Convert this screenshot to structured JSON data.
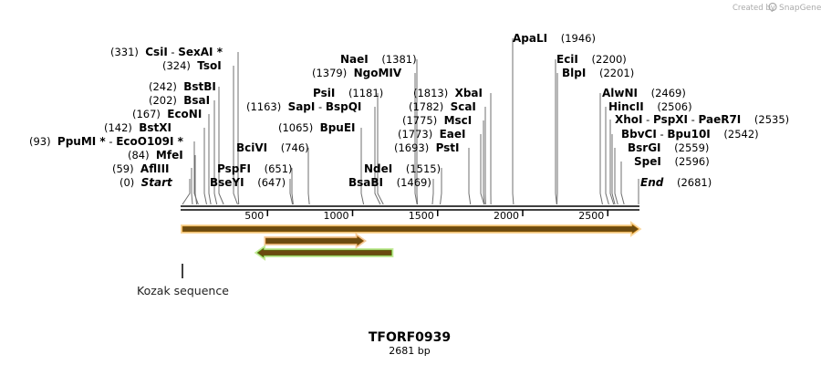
{
  "header": {
    "credit_prefix": "Created by",
    "credit_brand": "SnapGene"
  },
  "map": {
    "title": "TFORF0939",
    "length_label": "2681 bp",
    "total_bp": 2681,
    "ticks": [
      500,
      1000,
      1500,
      2000,
      2500
    ],
    "sites": [
      {
        "id": "start",
        "parts": [
          {
            "name": "Start",
            "italic": true
          }
        ],
        "pos": "(0)",
        "bp": 0
      },
      {
        "id": "bseyi",
        "parts": [
          {
            "name": "BseYI"
          }
        ],
        "pos": "(647)",
        "bp": 647
      },
      {
        "id": "afliii",
        "parts": [
          {
            "name": "AflIII"
          }
        ],
        "pos": "(59)",
        "bp": 59
      },
      {
        "id": "pspfi",
        "parts": [
          {
            "name": "PspFI"
          }
        ],
        "pos": "(651)",
        "bp": 651
      },
      {
        "id": "mfei",
        "parts": [
          {
            "name": "MfeI"
          }
        ],
        "pos": "(84)",
        "bp": 84
      },
      {
        "id": "ppumi",
        "parts": [
          {
            "name": "PpuMI *"
          },
          {
            "name": "EcoO109I *"
          }
        ],
        "pos": "(93)",
        "bp": 93
      },
      {
        "id": "bcivi",
        "parts": [
          {
            "name": "BciVI"
          }
        ],
        "pos": "(746)",
        "bp": 746
      },
      {
        "id": "bstxi",
        "parts": [
          {
            "name": "BstXI"
          }
        ],
        "pos": "(142)",
        "bp": 142
      },
      {
        "id": "econi",
        "parts": [
          {
            "name": "EcoNI"
          }
        ],
        "pos": "(167)",
        "bp": 167
      },
      {
        "id": "bsai",
        "parts": [
          {
            "name": "BsaI"
          }
        ],
        "pos": "(202)",
        "bp": 202
      },
      {
        "id": "bstbi",
        "parts": [
          {
            "name": "BstBI"
          }
        ],
        "pos": "(242)",
        "bp": 242
      },
      {
        "id": "tsoi",
        "parts": [
          {
            "name": "TsoI"
          }
        ],
        "pos": "(324)",
        "bp": 324
      },
      {
        "id": "csii",
        "parts": [
          {
            "name": "CsiI"
          },
          {
            "name": "SexAI *"
          }
        ],
        "pos": "(331)",
        "bp": 331
      },
      {
        "id": "bpuei",
        "parts": [
          {
            "name": "BpuEI"
          }
        ],
        "pos": "(1065)",
        "bp": 1065
      },
      {
        "id": "sapi",
        "parts": [
          {
            "name": "SapI"
          },
          {
            "name": "BspQI"
          }
        ],
        "pos": "(1163)",
        "bp": 1163
      },
      {
        "id": "psii",
        "parts": [
          {
            "name": "PsiI"
          }
        ],
        "pos": "(1181)",
        "bp": 1181
      },
      {
        "id": "ngomiv",
        "parts": [
          {
            "name": "NgoMIV"
          }
        ],
        "pos": "(1379)",
        "bp": 1379
      },
      {
        "id": "naei",
        "parts": [
          {
            "name": "NaeI"
          }
        ],
        "pos": "(1381)",
        "bp": 1381
      },
      {
        "id": "bsabi",
        "parts": [
          {
            "name": "BsaBI"
          }
        ],
        "pos": "(1469)",
        "bp": 1469
      },
      {
        "id": "ndei",
        "parts": [
          {
            "name": "NdeI"
          }
        ],
        "pos": "(1515)",
        "bp": 1515
      },
      {
        "id": "psti",
        "parts": [
          {
            "name": "PstI"
          }
        ],
        "pos": "(1693)",
        "bp": 1693
      },
      {
        "id": "eaei",
        "parts": [
          {
            "name": "EaeI"
          }
        ],
        "pos": "(1773)",
        "bp": 1773
      },
      {
        "id": "msci",
        "parts": [
          {
            "name": "MscI"
          }
        ],
        "pos": "(1775)",
        "bp": 1775
      },
      {
        "id": "scai",
        "parts": [
          {
            "name": "ScaI"
          }
        ],
        "pos": "(1782)",
        "bp": 1782
      },
      {
        "id": "xbai",
        "parts": [
          {
            "name": "XbaI"
          }
        ],
        "pos": "(1813)",
        "bp": 1813
      },
      {
        "id": "apali",
        "parts": [
          {
            "name": "ApaLI"
          }
        ],
        "pos": "(1946)",
        "bp": 1946
      },
      {
        "id": "ecii",
        "parts": [
          {
            "name": "EciI"
          }
        ],
        "pos": "(2200)",
        "bp": 2200
      },
      {
        "id": "blpi",
        "parts": [
          {
            "name": "BlpI"
          }
        ],
        "pos": "(2201)",
        "bp": 2201
      },
      {
        "id": "alwni",
        "parts": [
          {
            "name": "AlwNI"
          }
        ],
        "pos": "(2469)",
        "bp": 2469
      },
      {
        "id": "hincii",
        "parts": [
          {
            "name": "HincII"
          }
        ],
        "pos": "(2506)",
        "bp": 2506
      },
      {
        "id": "xhoi",
        "parts": [
          {
            "name": "XhoI"
          },
          {
            "name": "PspXI"
          },
          {
            "name": "PaeR7I"
          }
        ],
        "pos": "(2535)",
        "bp": 2535
      },
      {
        "id": "bbvci",
        "parts": [
          {
            "name": "BbvCI"
          },
          {
            "name": "Bpu10I"
          }
        ],
        "pos": "(2542)",
        "bp": 2542
      },
      {
        "id": "bsrgi",
        "parts": [
          {
            "name": "BsrGI"
          }
        ],
        "pos": "(2559)",
        "bp": 2559
      },
      {
        "id": "spei",
        "parts": [
          {
            "name": "SpeI"
          }
        ],
        "pos": "(2596)",
        "bp": 2596
      },
      {
        "id": "end",
        "parts": [
          {
            "name": "End",
            "italic": true
          }
        ],
        "pos": "(2681)",
        "bp": 2681
      }
    ],
    "features": [
      {
        "id": "orf-full",
        "direction": "forward",
        "start_bp": 0,
        "end_bp": 2681,
        "fill": "#f5a623",
        "stroke": "#c47a00"
      },
      {
        "id": "orf-inner",
        "direction": "forward",
        "start_bp": 490,
        "end_bp": 1065,
        "fill": "#e58a1f",
        "stroke": "#a45a00"
      },
      {
        "id": "orf-reverse",
        "direction": "reverse",
        "start_bp": 440,
        "end_bp": 1230,
        "fill": "#7ed321",
        "stroke": "#4a9a0a"
      }
    ],
    "kozak": {
      "label": "Kozak sequence",
      "bp": 0
    }
  }
}
